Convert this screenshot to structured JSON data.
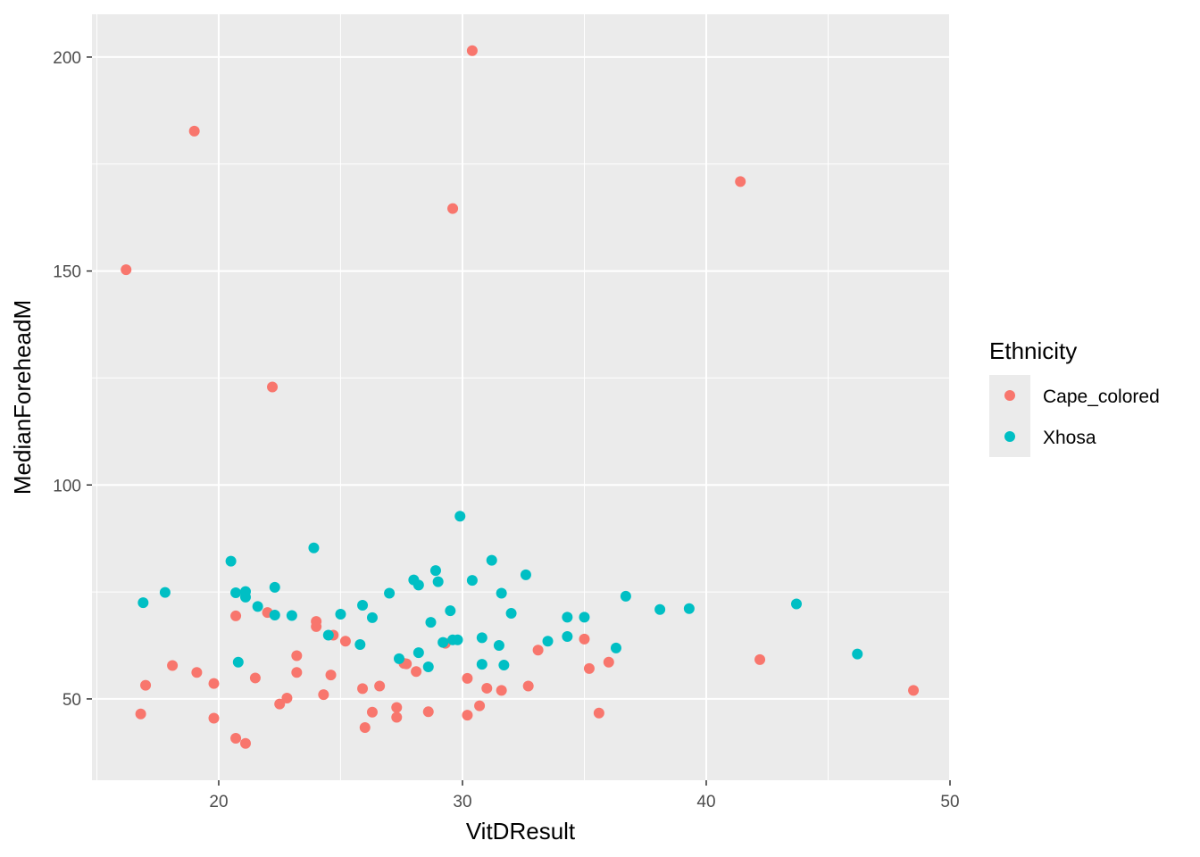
{
  "chart_data": {
    "type": "scatter",
    "xlabel": "VitDResult",
    "ylabel": "MedianForeheadM",
    "xlim": [
      14.8,
      50.0
    ],
    "ylim": [
      31.0,
      210.0
    ],
    "x_ticks": [
      20,
      30,
      40,
      50
    ],
    "y_ticks": [
      50,
      100,
      150,
      200
    ],
    "x_tick_labels": [
      "20",
      "30",
      "40",
      "50"
    ],
    "y_tick_labels": [
      "50",
      "100",
      "150",
      "200"
    ],
    "grid": true,
    "legend": {
      "title": "Ethnicity",
      "position": "right"
    },
    "series": [
      {
        "name": "Cape_colored",
        "color": "#F8766D",
        "points": [
          [
            16.2,
            150.3
          ],
          [
            19.0,
            182.7
          ],
          [
            22.2,
            122.9
          ],
          [
            29.6,
            164.6
          ],
          [
            30.4,
            201.5
          ],
          [
            41.4,
            170.9
          ],
          [
            16.8,
            46.5
          ],
          [
            17.0,
            53.2
          ],
          [
            18.1,
            57.8
          ],
          [
            19.1,
            56.2
          ],
          [
            19.8,
            53.6
          ],
          [
            19.8,
            45.5
          ],
          [
            20.7,
            69.4
          ],
          [
            20.7,
            40.8
          ],
          [
            21.1,
            39.6
          ],
          [
            21.5,
            54.9
          ],
          [
            22.0,
            70.2
          ],
          [
            22.5,
            48.8
          ],
          [
            22.8,
            50.2
          ],
          [
            23.2,
            60.1
          ],
          [
            23.2,
            56.2
          ],
          [
            24.0,
            66.9
          ],
          [
            24.0,
            68.1
          ],
          [
            24.3,
            51.0
          ],
          [
            24.6,
            55.6
          ],
          [
            24.7,
            64.9
          ],
          [
            25.2,
            63.5
          ],
          [
            25.9,
            52.4
          ],
          [
            26.0,
            43.3
          ],
          [
            26.3,
            46.9
          ],
          [
            26.6,
            53.0
          ],
          [
            27.3,
            48.0
          ],
          [
            27.3,
            45.7
          ],
          [
            27.6,
            58.3
          ],
          [
            27.7,
            58.2
          ],
          [
            28.1,
            56.4
          ],
          [
            28.6,
            47.0
          ],
          [
            29.3,
            63.0
          ],
          [
            30.2,
            54.8
          ],
          [
            30.2,
            46.2
          ],
          [
            30.7,
            48.4
          ],
          [
            31.0,
            52.5
          ],
          [
            31.6,
            52.0
          ],
          [
            32.7,
            53.0
          ],
          [
            33.1,
            61.4
          ],
          [
            35.0,
            64.0
          ],
          [
            35.2,
            57.1
          ],
          [
            35.6,
            46.7
          ],
          [
            36.0,
            58.6
          ],
          [
            42.2,
            59.2
          ],
          [
            48.5,
            52.0
          ]
        ]
      },
      {
        "name": "Xhosa",
        "color": "#00BFC4",
        "points": [
          [
            16.9,
            72.5
          ],
          [
            17.8,
            74.9
          ],
          [
            20.5,
            82.2
          ],
          [
            20.7,
            74.8
          ],
          [
            20.8,
            58.6
          ],
          [
            21.1,
            75.1
          ],
          [
            21.1,
            73.8
          ],
          [
            21.6,
            71.6
          ],
          [
            22.3,
            76.1
          ],
          [
            22.3,
            69.6
          ],
          [
            23.0,
            69.5
          ],
          [
            23.9,
            85.3
          ],
          [
            24.5,
            64.9
          ],
          [
            25.0,
            69.8
          ],
          [
            25.8,
            62.7
          ],
          [
            25.9,
            71.9
          ],
          [
            26.3,
            69.0
          ],
          [
            27.0,
            74.7
          ],
          [
            27.4,
            59.4
          ],
          [
            28.0,
            77.8
          ],
          [
            28.2,
            76.6
          ],
          [
            28.2,
            60.8
          ],
          [
            28.6,
            57.5
          ],
          [
            28.7,
            67.9
          ],
          [
            28.9,
            80.0
          ],
          [
            29.0,
            77.4
          ],
          [
            29.2,
            63.2
          ],
          [
            29.5,
            70.6
          ],
          [
            29.6,
            63.8
          ],
          [
            29.8,
            63.8
          ],
          [
            29.9,
            92.7
          ],
          [
            30.4,
            77.7
          ],
          [
            30.8,
            64.3
          ],
          [
            30.8,
            58.1
          ],
          [
            31.2,
            82.4
          ],
          [
            31.5,
            62.5
          ],
          [
            31.6,
            74.7
          ],
          [
            31.7,
            57.9
          ],
          [
            32.0,
            70.0
          ],
          [
            32.6,
            79.0
          ],
          [
            33.5,
            63.5
          ],
          [
            34.3,
            69.1
          ],
          [
            34.3,
            64.6
          ],
          [
            35.0,
            69.1
          ],
          [
            36.3,
            61.9
          ],
          [
            36.7,
            74.0
          ],
          [
            38.1,
            70.9
          ],
          [
            39.3,
            71.1
          ],
          [
            43.7,
            72.2
          ],
          [
            46.2,
            60.5
          ]
        ]
      }
    ]
  }
}
